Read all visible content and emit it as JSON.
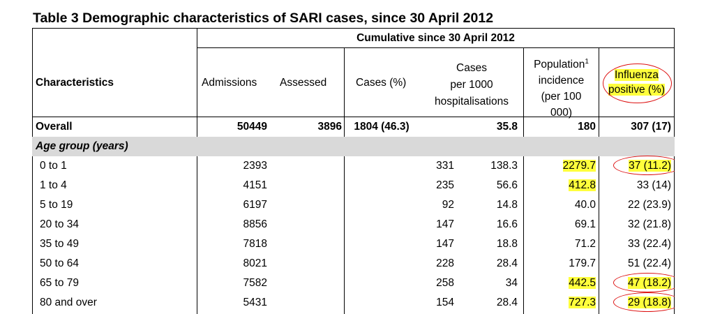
{
  "title": "Table 3 Demographic characteristics of SARI cases, since 30 April 2012",
  "group_header": "Cumulative since 30 April 2012",
  "headers": {
    "characteristics": "Characteristics",
    "admissions": "Admissions",
    "assessed": "Assessed",
    "cases": "Cases (%)",
    "per1000": [
      "Cases",
      "per 1000",
      "hospitalisations"
    ],
    "incidence": [
      "Population",
      "incidence",
      "(per 100",
      "000)"
    ],
    "incidence_sup": "1",
    "influenza": [
      "Influenza",
      "positive (%)"
    ]
  },
  "overall": {
    "label": "Overall",
    "admissions": "50449",
    "assessed": "3896",
    "cases": "1804 (46.3)",
    "per1000": "35.8",
    "incidence": "180",
    "influenza": "307 (17)"
  },
  "section_label": "Age group (years)",
  "rows": [
    {
      "label": "0 to 1",
      "admissions": "2393",
      "cases": "331",
      "per1000": "138.3",
      "incidence": "2279.7",
      "influenza": "37 (11.2)"
    },
    {
      "label": "1 to 4",
      "admissions": "4151",
      "cases": "235",
      "per1000": "56.6",
      "incidence": "412.8",
      "influenza": "33 (14)"
    },
    {
      "label": "5 to 19",
      "admissions": "6197",
      "cases": "92",
      "per1000": "14.8",
      "incidence": "40.0",
      "influenza": "22 (23.9)"
    },
    {
      "label": "20 to 34",
      "admissions": "8856",
      "cases": "147",
      "per1000": "16.6",
      "incidence": "69.1",
      "influenza": "32 (21.8)"
    },
    {
      "label": "35 to 49",
      "admissions": "7818",
      "cases": "147",
      "per1000": "18.8",
      "incidence": "71.2",
      "influenza": "33 (22.4)"
    },
    {
      "label": "50 to 64",
      "admissions": "8021",
      "cases": "228",
      "per1000": "28.4",
      "incidence": "179.7",
      "influenza": "51 (22.4)"
    },
    {
      "label": "65 to 79",
      "admissions": "7582",
      "cases": "258",
      "per1000": "34",
      "incidence": "442.5",
      "influenza": "47 (18.2)"
    },
    {
      "label": "80 and over",
      "admissions": "5431",
      "cases": "154",
      "per1000": "28.4",
      "incidence": "727.3",
      "influenza": "29 (18.8)"
    }
  ],
  "highlight_color": "#ffff3c",
  "annotation_color": "#dd1111"
}
